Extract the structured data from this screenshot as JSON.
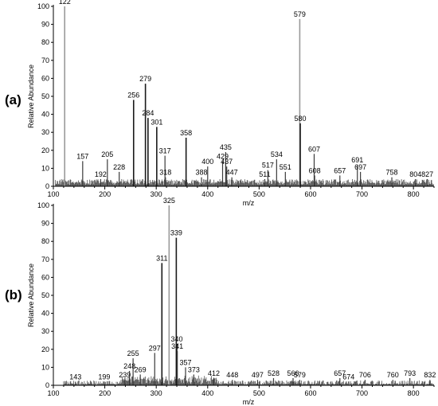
{
  "chart_data": [
    {
      "type": "bar",
      "panel_label": "(a)",
      "xlabel": "m/z",
      "ylabel": "Relative Abundance",
      "xlim": [
        100,
        840
      ],
      "ylim": [
        0,
        100
      ],
      "xticks": [
        100,
        200,
        300,
        400,
        500,
        600,
        700,
        800
      ],
      "yticks": [
        0,
        10,
        20,
        30,
        40,
        50,
        60,
        70,
        80,
        90,
        100
      ],
      "peaks": [
        {
          "mz": 122,
          "intensity": 100,
          "label": "122"
        },
        {
          "mz": 157,
          "intensity": 14,
          "label": "157"
        },
        {
          "mz": 192,
          "intensity": 4,
          "label": "192"
        },
        {
          "mz": 205,
          "intensity": 15,
          "label": "205"
        },
        {
          "mz": 228,
          "intensity": 8,
          "label": "228"
        },
        {
          "mz": 256,
          "intensity": 48,
          "label": "256"
        },
        {
          "mz": 279,
          "intensity": 57,
          "label": "279"
        },
        {
          "mz": 284,
          "intensity": 38,
          "label": "284"
        },
        {
          "mz": 301,
          "intensity": 33,
          "label": "301"
        },
        {
          "mz": 317,
          "intensity": 17,
          "label": "317"
        },
        {
          "mz": 318,
          "intensity": 5,
          "label": "318"
        },
        {
          "mz": 358,
          "intensity": 27,
          "label": "358"
        },
        {
          "mz": 388,
          "intensity": 5,
          "label": "388"
        },
        {
          "mz": 400,
          "intensity": 11,
          "label": "400"
        },
        {
          "mz": 429,
          "intensity": 14,
          "label": "429"
        },
        {
          "mz": 435,
          "intensity": 19,
          "label": "435"
        },
        {
          "mz": 437,
          "intensity": 11,
          "label": "437"
        },
        {
          "mz": 447,
          "intensity": 5,
          "label": "447"
        },
        {
          "mz": 511,
          "intensity": 4,
          "label": "511"
        },
        {
          "mz": 517,
          "intensity": 9,
          "label": "517"
        },
        {
          "mz": 534,
          "intensity": 15,
          "label": "534"
        },
        {
          "mz": 551,
          "intensity": 8,
          "label": "551"
        },
        {
          "mz": 579,
          "intensity": 93,
          "label": "579"
        },
        {
          "mz": 580,
          "intensity": 35,
          "label": "580"
        },
        {
          "mz": 607,
          "intensity": 18,
          "label": "607"
        },
        {
          "mz": 608,
          "intensity": 6,
          "label": "608"
        },
        {
          "mz": 657,
          "intensity": 6,
          "label": "657"
        },
        {
          "mz": 691,
          "intensity": 12,
          "label": "691"
        },
        {
          "mz": 697,
          "intensity": 8,
          "label": "697"
        },
        {
          "mz": 758,
          "intensity": 5,
          "label": "758"
        },
        {
          "mz": 804,
          "intensity": 4,
          "label": "804"
        },
        {
          "mz": 827,
          "intensity": 4,
          "label": "827"
        }
      ]
    },
    {
      "type": "bar",
      "panel_label": "(b)",
      "xlabel": "m/z",
      "ylabel": "Relative Abundance",
      "xlim": [
        100,
        840
      ],
      "ylim": [
        0,
        100
      ],
      "xticks": [
        100,
        200,
        300,
        400,
        500,
        600,
        700,
        800
      ],
      "yticks": [
        0,
        10,
        20,
        30,
        40,
        50,
        60,
        70,
        80,
        90,
        100
      ],
      "peaks": [
        {
          "mz": 143,
          "intensity": 2,
          "label": "143"
        },
        {
          "mz": 199,
          "intensity": 2,
          "label": "199"
        },
        {
          "mz": 239,
          "intensity": 3,
          "label": "239"
        },
        {
          "mz": 248,
          "intensity": 8,
          "label": "248"
        },
        {
          "mz": 255,
          "intensity": 15,
          "label": "255"
        },
        {
          "mz": 269,
          "intensity": 6,
          "label": "269"
        },
        {
          "mz": 297,
          "intensity": 18,
          "label": "297"
        },
        {
          "mz": 311,
          "intensity": 68,
          "label": "311"
        },
        {
          "mz": 325,
          "intensity": 100,
          "label": "325"
        },
        {
          "mz": 339,
          "intensity": 82,
          "label": "339"
        },
        {
          "mz": 340,
          "intensity": 23,
          "label": "340"
        },
        {
          "mz": 341,
          "intensity": 19,
          "label": "341"
        },
        {
          "mz": 357,
          "intensity": 10,
          "label": "357"
        },
        {
          "mz": 373,
          "intensity": 6,
          "label": "373"
        },
        {
          "mz": 412,
          "intensity": 4,
          "label": "412"
        },
        {
          "mz": 448,
          "intensity": 3,
          "label": "448"
        },
        {
          "mz": 497,
          "intensity": 3,
          "label": "497"
        },
        {
          "mz": 528,
          "intensity": 4,
          "label": "528"
        },
        {
          "mz": 566,
          "intensity": 4,
          "label": "566"
        },
        {
          "mz": 579,
          "intensity": 3,
          "label": "579"
        },
        {
          "mz": 657,
          "intensity": 4,
          "label": "657"
        },
        {
          "mz": 674,
          "intensity": 2,
          "label": "674"
        },
        {
          "mz": 706,
          "intensity": 3,
          "label": "706"
        },
        {
          "mz": 760,
          "intensity": 3,
          "label": "760"
        },
        {
          "mz": 793,
          "intensity": 4,
          "label": "793"
        },
        {
          "mz": 832,
          "intensity": 3,
          "label": "832"
        }
      ]
    }
  ]
}
